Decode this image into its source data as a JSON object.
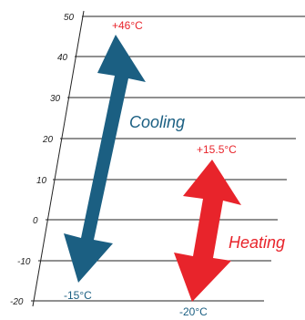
{
  "scale": {
    "tick_labels": [
      "50",
      "40",
      "30",
      "20",
      "10",
      "0",
      "-10",
      "-20"
    ]
  },
  "cooling": {
    "label": "Cooling",
    "top_temp": "+46°C",
    "bottom_temp": "-15°C",
    "color": "#1b5f82"
  },
  "heating": {
    "label": "Heating",
    "top_temp": "+15.5°C",
    "bottom_temp": "-20°C",
    "color": "#e8242b"
  },
  "colors": {
    "grid": "#222222",
    "text": "#222222"
  }
}
